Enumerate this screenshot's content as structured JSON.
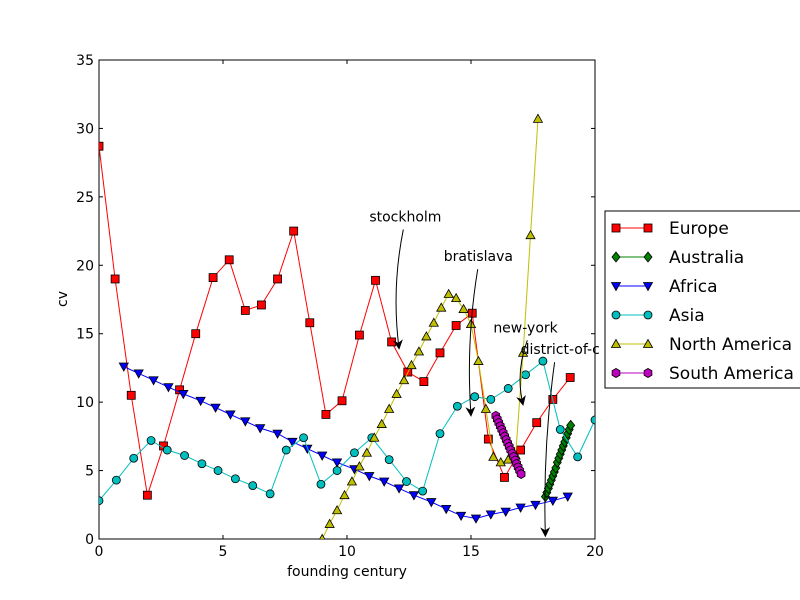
{
  "chart_data": {
    "type": "line",
    "title": "",
    "xlabel": "founding century",
    "ylabel": "cv",
    "xlim": [
      0,
      20
    ],
    "ylim": [
      0,
      35
    ],
    "xticks": [
      "0",
      "5",
      "10",
      "15",
      "20"
    ],
    "yticks": [
      "0",
      "5",
      "10",
      "15",
      "20",
      "25",
      "30",
      "35"
    ],
    "grid": false,
    "legend_position": "right",
    "series": [
      {
        "name": "Europe",
        "color": "#ff0000",
        "marker": "square",
        "points": [
          [
            0.0,
            28.7
          ],
          [
            0.65,
            19.0
          ],
          [
            1.3,
            10.5
          ],
          [
            1.95,
            3.2
          ],
          [
            2.6,
            6.8
          ],
          [
            3.25,
            10.9
          ],
          [
            3.9,
            15.0
          ],
          [
            4.6,
            19.1
          ],
          [
            5.25,
            20.4
          ],
          [
            5.9,
            16.7
          ],
          [
            6.55,
            17.1
          ],
          [
            7.2,
            19.0
          ],
          [
            7.85,
            22.5
          ],
          [
            8.5,
            15.8
          ],
          [
            9.15,
            9.1
          ],
          [
            9.8,
            10.1
          ],
          [
            10.5,
            14.9
          ],
          [
            11.15,
            18.9
          ],
          [
            11.8,
            14.4
          ],
          [
            12.45,
            12.2
          ],
          [
            13.1,
            11.5
          ],
          [
            13.75,
            13.6
          ],
          [
            14.4,
            15.6
          ],
          [
            15.05,
            16.5
          ],
          [
            15.7,
            7.3
          ],
          [
            16.35,
            4.5
          ],
          [
            17.0,
            6.5
          ],
          [
            17.65,
            8.5
          ],
          [
            18.3,
            10.2
          ],
          [
            19.0,
            11.8
          ]
        ]
      },
      {
        "name": "Australia",
        "color": "#008000",
        "marker": "diamond",
        "points": [
          [
            18.0,
            3.1
          ],
          [
            18.06,
            3.4
          ],
          [
            18.12,
            3.7
          ],
          [
            18.18,
            4.0
          ],
          [
            18.24,
            4.3
          ],
          [
            18.3,
            4.6
          ],
          [
            18.36,
            4.9
          ],
          [
            18.42,
            5.2
          ],
          [
            18.48,
            5.6
          ],
          [
            18.54,
            5.9
          ],
          [
            18.6,
            6.2
          ],
          [
            18.66,
            6.5
          ],
          [
            18.72,
            6.8
          ],
          [
            18.78,
            7.1
          ],
          [
            18.84,
            7.4
          ],
          [
            18.9,
            7.7
          ],
          [
            18.96,
            8.0
          ],
          [
            19.02,
            8.3
          ]
        ]
      },
      {
        "name": "Africa",
        "color": "#0000ff",
        "marker": "triangle-down",
        "points": [
          [
            1.0,
            12.6
          ],
          [
            1.6,
            12.1
          ],
          [
            2.2,
            11.6
          ],
          [
            2.8,
            11.1
          ],
          [
            3.4,
            10.6
          ],
          [
            4.1,
            10.1
          ],
          [
            4.7,
            9.6
          ],
          [
            5.3,
            9.1
          ],
          [
            5.9,
            8.6
          ],
          [
            6.5,
            8.1
          ],
          [
            7.2,
            7.7
          ],
          [
            7.8,
            7.1
          ],
          [
            8.4,
            6.6
          ],
          [
            9.0,
            6.1
          ],
          [
            9.6,
            5.6
          ],
          [
            10.3,
            5.1
          ],
          [
            10.9,
            4.6
          ],
          [
            11.5,
            4.2
          ],
          [
            12.1,
            3.7
          ],
          [
            12.7,
            3.2
          ],
          [
            13.4,
            2.7
          ],
          [
            14.0,
            2.2
          ],
          [
            14.6,
            1.7
          ],
          [
            15.2,
            1.5
          ],
          [
            15.8,
            1.8
          ],
          [
            16.4,
            2.0
          ],
          [
            17.0,
            2.3
          ],
          [
            17.6,
            2.5
          ],
          [
            18.3,
            2.8
          ],
          [
            18.9,
            3.1
          ]
        ]
      },
      {
        "name": "Asia",
        "color": "#00bfbf",
        "marker": "circle",
        "points": [
          [
            0.0,
            2.8
          ],
          [
            0.7,
            4.3
          ],
          [
            1.4,
            5.9
          ],
          [
            2.1,
            7.2
          ],
          [
            2.75,
            6.5
          ],
          [
            3.45,
            6.1
          ],
          [
            4.15,
            5.5
          ],
          [
            4.8,
            5.0
          ],
          [
            5.5,
            4.4
          ],
          [
            6.2,
            3.9
          ],
          [
            6.9,
            3.3
          ],
          [
            7.55,
            6.5
          ],
          [
            8.25,
            7.4
          ],
          [
            8.95,
            4.0
          ],
          [
            9.6,
            5.0
          ],
          [
            10.3,
            6.3
          ],
          [
            11.0,
            7.4
          ],
          [
            11.7,
            5.8
          ],
          [
            12.4,
            4.2
          ],
          [
            13.05,
            3.5
          ],
          [
            13.75,
            7.7
          ],
          [
            14.45,
            9.7
          ],
          [
            15.15,
            10.4
          ],
          [
            15.8,
            10.2
          ],
          [
            16.5,
            11.0
          ],
          [
            17.2,
            12.0
          ],
          [
            17.9,
            13.0
          ],
          [
            18.6,
            8.0
          ],
          [
            19.3,
            6.0
          ],
          [
            20.0,
            8.7
          ]
        ]
      },
      {
        "name": "North America",
        "color": "#bfbf00",
        "marker": "triangle-up",
        "points": [
          [
            9.0,
            0.0
          ],
          [
            9.3,
            1.1
          ],
          [
            9.6,
            2.1
          ],
          [
            9.9,
            3.2
          ],
          [
            10.2,
            4.2
          ],
          [
            10.5,
            5.3
          ],
          [
            10.8,
            6.3
          ],
          [
            11.1,
            7.4
          ],
          [
            11.4,
            8.4
          ],
          [
            11.7,
            9.5
          ],
          [
            12.0,
            10.6
          ],
          [
            12.3,
            11.6
          ],
          [
            12.6,
            12.7
          ],
          [
            12.9,
            13.7
          ],
          [
            13.2,
            14.8
          ],
          [
            13.5,
            15.8
          ],
          [
            13.8,
            16.9
          ],
          [
            14.1,
            17.9
          ],
          [
            14.4,
            17.6
          ],
          [
            14.7,
            16.8
          ],
          [
            15.0,
            15.7
          ],
          [
            15.3,
            13.0
          ],
          [
            15.6,
            9.5
          ],
          [
            15.9,
            6.0
          ],
          [
            16.2,
            5.6
          ],
          [
            16.5,
            5.8
          ],
          [
            16.8,
            6.1
          ],
          [
            17.1,
            13.6
          ],
          [
            17.4,
            22.2
          ],
          [
            17.7,
            30.7
          ]
        ]
      },
      {
        "name": "South America",
        "color": "#bf00bf",
        "marker": "hexagon",
        "points": [
          [
            16.0,
            9.0
          ],
          [
            16.06,
            8.75
          ],
          [
            16.12,
            8.5
          ],
          [
            16.18,
            8.25
          ],
          [
            16.24,
            8.0
          ],
          [
            16.3,
            7.75
          ],
          [
            16.36,
            7.5
          ],
          [
            16.42,
            7.25
          ],
          [
            16.48,
            7.0
          ],
          [
            16.54,
            6.75
          ],
          [
            16.6,
            6.5
          ],
          [
            16.66,
            6.25
          ],
          [
            16.72,
            6.0
          ],
          [
            16.78,
            5.75
          ],
          [
            16.84,
            5.5
          ],
          [
            16.9,
            5.25
          ],
          [
            16.96,
            5.0
          ],
          [
            17.02,
            4.75
          ]
        ]
      }
    ],
    "annotations": [
      {
        "text": "stockholm",
        "text_xy": [
          10.9,
          23.2
        ],
        "point": [
          12.1,
          13.9
        ]
      },
      {
        "text": "bratislava",
        "text_xy": [
          13.9,
          20.3
        ],
        "point": [
          15.0,
          9.0
        ]
      },
      {
        "text": "new-york",
        "text_xy": [
          15.9,
          15.1
        ],
        "point": [
          17.1,
          9.8
        ]
      },
      {
        "text": "district-of-c",
        "text_xy": [
          17.0,
          13.5
        ],
        "point": [
          18.0,
          0.2
        ]
      }
    ]
  }
}
